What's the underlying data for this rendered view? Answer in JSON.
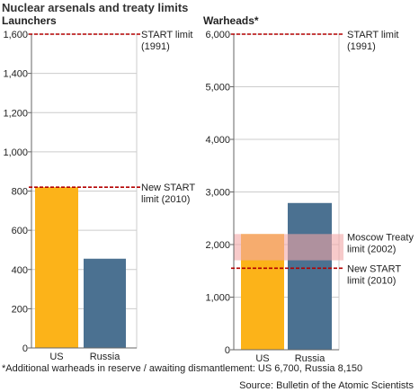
{
  "title": "Nuclear arsenals and treaty limits",
  "footnote": "*Additional warheads in reserve / awaiting dismantlement: US 6,700, Russia 8,150",
  "source": "Source: Bulletin of the Atomic Scientists",
  "colors": {
    "us": "#fcb319",
    "russia": "#4b7191",
    "limit_line": "#b30000",
    "moscow_band": "#f2a6a6",
    "grid": "#cccccc",
    "axis": "#666666"
  },
  "chart_data": [
    {
      "type": "bar",
      "title": "Launchers",
      "categories": [
        "US",
        "Russia"
      ],
      "values": [
        820,
        455
      ],
      "ylim": [
        0,
        1600
      ],
      "yticks": [
        "0",
        "200",
        "400",
        "600",
        "800",
        "1,000",
        "1,200",
        "1,400",
        "1,600"
      ],
      "ytick_values": [
        0,
        200,
        400,
        600,
        800,
        1000,
        1200,
        1400,
        1600
      ],
      "grid": true,
      "reference_lines": [
        {
          "value": 1600,
          "label_lines": [
            "START limit",
            "(1991)"
          ]
        },
        {
          "value": 820,
          "label_lines": [
            "New START",
            "limit (2010)"
          ]
        }
      ]
    },
    {
      "type": "bar",
      "title": "Warheads*",
      "categories": [
        "US",
        "Russia"
      ],
      "values": [
        2200,
        2790
      ],
      "ylim": [
        0,
        6000
      ],
      "yticks": [
        "0",
        "1,000",
        "2,000",
        "3,000",
        "4,000",
        "5,000",
        "6,000"
      ],
      "ytick_values": [
        0,
        1000,
        2000,
        3000,
        4000,
        5000,
        6000
      ],
      "grid": true,
      "reference_lines": [
        {
          "value": 6000,
          "label_lines": [
            "START limit",
            "(1991)"
          ]
        },
        {
          "value": 1550,
          "label_lines": [
            "New START",
            "limit (2010)"
          ]
        }
      ],
      "reference_bands": [
        {
          "from": 1700,
          "to": 2200,
          "label_lines": [
            "Moscow Treaty",
            "limit (2002)"
          ]
        }
      ]
    }
  ]
}
